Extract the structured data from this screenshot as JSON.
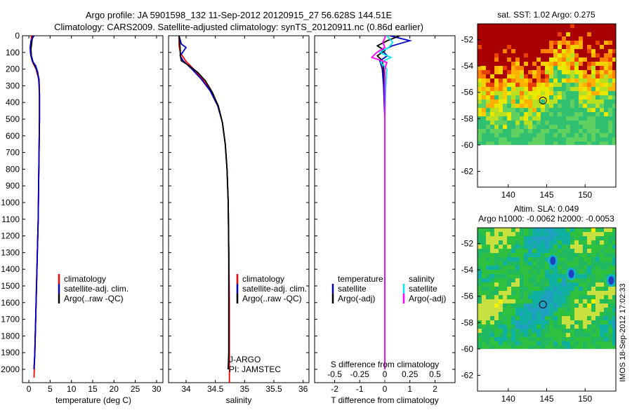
{
  "header": {
    "title_line1": "Argo profile: JA 5901598_132 11-Sep-2012 20120915_27 56.628S 144.51E",
    "title_line2": "Climatology: CARS2009. Satellite-adjusted climatology: synTS_20120911.nc (0.86d earlier)"
  },
  "colors": {
    "climatology": "#ff0000",
    "satellite_adj": "#0000cc",
    "argo": "#000000",
    "s_satellite": "#00e5ee",
    "s_argo": "#ff00ff"
  },
  "depth_axis": {
    "ticks": [
      0,
      100,
      200,
      300,
      400,
      500,
      600,
      700,
      800,
      900,
      1000,
      1100,
      1200,
      1300,
      1400,
      1500,
      1600,
      1700,
      1800,
      1900,
      2000
    ],
    "tick_labels": [
      "0",
      "100",
      "200",
      "300",
      "400",
      "500",
      "600",
      "700",
      "800",
      "900",
      "1000",
      "1100",
      "1200",
      "1300",
      "1400",
      "1500",
      "1600",
      "1700",
      "1800",
      "1900",
      "2000"
    ],
    "range": [
      0,
      2080
    ]
  },
  "chart_data": [
    {
      "type": "line",
      "id": "temperature",
      "xlabel": "temperature (deg C)",
      "xlim": [
        -1.5,
        31.5
      ],
      "xticks": [
        0,
        5,
        10,
        15,
        20,
        25,
        30
      ],
      "xtick_labels": [
        "0",
        "5",
        "10",
        "15",
        "20",
        "25",
        "30"
      ],
      "legend": [
        "climatology",
        "satellite-adj. clim.",
        "Argo(..raw -QC)"
      ],
      "series": [
        {
          "name": "climatology",
          "depth": [
            0,
            40,
            80,
            120,
            160,
            200,
            260,
            350,
            500,
            700,
            900,
            1100,
            1300,
            1500,
            1700,
            1900,
            2050
          ],
          "values": [
            0.6,
            0.6,
            0.5,
            0.5,
            0.9,
            1.7,
            2.3,
            2.5,
            2.5,
            2.4,
            2.3,
            2.2,
            2.0,
            1.8,
            1.6,
            1.4,
            1.2
          ]
        },
        {
          "name": "satellite-adj. clim.",
          "depth": [
            0,
            40,
            80,
            120,
            160,
            200,
            260,
            350,
            500,
            700,
            900,
            1100,
            1300,
            1500,
            1700,
            1900,
            2000
          ],
          "values": [
            0.9,
            0.7,
            0.5,
            0.6,
            1.0,
            1.8,
            2.4,
            2.5,
            2.5,
            2.4,
            2.3,
            2.2,
            2.0,
            1.8,
            1.6,
            1.4,
            1.2
          ]
        },
        {
          "name": "Argo(..raw -QC)",
          "depth": [
            0,
            30,
            70,
            110,
            150,
            180,
            220,
            280,
            350,
            500,
            700,
            900,
            1100,
            1300,
            1500,
            1700,
            1900,
            2000
          ],
          "values": [
            1.2,
            0.5,
            0.3,
            0.4,
            0.8,
            1.6,
            2.1,
            2.4,
            2.5,
            2.5,
            2.4,
            2.3,
            2.2,
            2.0,
            1.8,
            1.6,
            1.4,
            1.2
          ]
        }
      ]
    },
    {
      "type": "line",
      "id": "salinity",
      "xlabel": "salinity",
      "xlim": [
        33.7,
        36.1
      ],
      "xticks": [
        34,
        34.5,
        35,
        35.5,
        36
      ],
      "xtick_labels": [
        "34",
        "34.5",
        "35",
        "35.5",
        "36"
      ],
      "legend": [
        "climatology",
        "satellite-adj. clim.",
        "Argo(..raw -QC)"
      ],
      "annotations": [
        "J-ARGO",
        "PI: JAMSTEC"
      ],
      "series": [
        {
          "name": "climatology",
          "depth": [
            0,
            60,
            100,
            150,
            200,
            260,
            330,
            420,
            520,
            650,
            800,
            1000,
            1300,
            1600,
            1900,
            2080
          ],
          "values": [
            33.88,
            33.88,
            33.9,
            33.99,
            34.13,
            34.28,
            34.42,
            34.55,
            34.62,
            34.67,
            34.7,
            34.72,
            34.73,
            34.74,
            34.74,
            34.74
          ]
        },
        {
          "name": "satellite-adj. clim.",
          "depth": [
            0,
            50,
            70,
            95,
            120,
            150,
            200,
            260,
            330,
            420,
            520,
            650,
            800,
            1000,
            1300,
            1600,
            1900,
            2000
          ],
          "values": [
            33.88,
            33.92,
            34.0,
            33.95,
            33.9,
            33.95,
            34.1,
            34.26,
            34.41,
            34.54,
            34.62,
            34.67,
            34.7,
            34.72,
            34.73,
            34.73,
            34.73,
            34.72
          ]
        },
        {
          "name": "Argo(..raw -QC)",
          "depth": [
            0,
            40,
            80,
            120,
            150,
            180,
            220,
            270,
            340,
            420,
            520,
            650,
            800,
            1000,
            1300,
            1600,
            1900,
            2000
          ],
          "values": [
            33.88,
            33.89,
            33.9,
            33.9,
            33.92,
            34.05,
            34.2,
            34.33,
            34.45,
            34.55,
            34.62,
            34.67,
            34.7,
            34.72,
            34.73,
            34.73,
            34.73,
            34.72
          ]
        }
      ]
    },
    {
      "type": "line",
      "id": "differences",
      "xlabel": "T difference from climatology",
      "xlabel_top": "S difference from climatology",
      "xlim": [
        -2.8,
        2.8
      ],
      "xticks": [
        -2,
        -1,
        0,
        1,
        2
      ],
      "xtick_labels": [
        "-2",
        "-1",
        "0",
        "1",
        "2"
      ],
      "s_ticks": [
        -0.5,
        -0.25,
        0,
        0.25,
        0.5
      ],
      "s_tick_labels": [
        "-0.5",
        "-0.25",
        "0",
        "0.25",
        "0.5"
      ],
      "legend_temperature_title": "temperature",
      "legend_salinity_title": "salinity",
      "legend": [
        "satellite",
        "Argo(-adj)",
        "satellite",
        "Argo(-adj)"
      ],
      "series": [
        {
          "name": "temperature satellite",
          "depth": [
            0,
            30,
            60,
            90,
            120,
            150,
            200,
            300,
            500,
            800,
            1200,
            1600,
            2000
          ],
          "values": [
            0.2,
            1.0,
            0.3,
            -0.1,
            0.1,
            -0.2,
            -0.1,
            -0.05,
            0,
            0,
            0,
            0,
            0
          ]
        },
        {
          "name": "temperature Argo(-adj)",
          "depth": [
            0,
            30,
            60,
            90,
            120,
            150,
            200,
            300,
            500,
            800,
            1200,
            1600,
            2000
          ],
          "values": [
            0.6,
            0.1,
            -0.3,
            0,
            -0.3,
            -0.1,
            -0.05,
            0,
            0,
            0,
            0,
            0,
            0
          ]
        },
        {
          "name": "salinity satellite",
          "depth": [
            0,
            40,
            70,
            100,
            130,
            160,
            200,
            300,
            500,
            800,
            1200,
            1600,
            2000
          ],
          "values": [
            0.02,
            0.08,
            0.04,
            -0.05,
            0.06,
            -0.04,
            0.02,
            0.01,
            0,
            0,
            0,
            0,
            0
          ]
        },
        {
          "name": "salinity Argo(-adj)",
          "depth": [
            0,
            40,
            70,
            100,
            130,
            160,
            200,
            300,
            500,
            800,
            1200,
            1600,
            2000
          ],
          "values": [
            0.01,
            -0.02,
            0.0,
            -0.08,
            -0.13,
            0.02,
            0.0,
            0.0,
            0,
            0,
            0,
            0,
            0
          ]
        }
      ]
    },
    {
      "type": "heatmap",
      "id": "sst_map",
      "title": "sat. SST: 1.02 Argo: 0.275",
      "xlim": [
        136,
        154
      ],
      "ylim": [
        -63.2,
        -50.8
      ],
      "xticks": [
        140,
        145,
        150
      ],
      "xtick_labels": [
        "140",
        "145",
        "150"
      ],
      "yticks": [
        -52,
        -54,
        -56,
        -58,
        -60,
        -62
      ],
      "ytick_labels": [
        "-52",
        "-54",
        "-56",
        "-58",
        "-60",
        "-62"
      ],
      "marker": {
        "lon": 144.51,
        "lat": -56.628
      }
    },
    {
      "type": "heatmap",
      "id": "sla_map",
      "title_line1": "Altim. SLA: 0.049",
      "title_line2": "Argo h1000: -0.0062 h2000: -0.0053",
      "xlim": [
        136,
        154
      ],
      "ylim": [
        -63.2,
        -50.8
      ],
      "xticks": [
        140,
        145,
        150
      ],
      "xtick_labels": [
        "140",
        "145",
        "150"
      ],
      "yticks": [
        -52,
        -54,
        -56,
        -58,
        -60,
        -62
      ],
      "ytick_labels": [
        "-52",
        "-54",
        "-56",
        "-58",
        "-60",
        "-62"
      ],
      "marker": {
        "lon": 144.51,
        "lat": -56.628
      }
    }
  ],
  "footer": {
    "vertical_stamp": "IMOS 18-Sep-2012 17:02:33"
  }
}
